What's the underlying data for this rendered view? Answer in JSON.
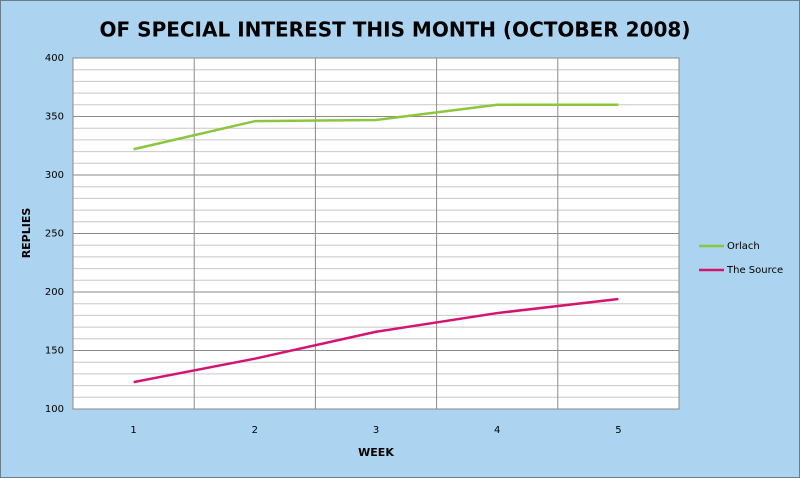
{
  "chart_data": {
    "type": "line",
    "title": "OF SPECIAL INTEREST THIS MONTH (OCTOBER 2008)",
    "x_label": "WEEK",
    "y_label": "REPLIES",
    "categories": [
      "1",
      "2",
      "3",
      "4",
      "5"
    ],
    "series": [
      {
        "name": "Orlach",
        "color": "#8cc63f",
        "values": [
          322,
          346,
          347,
          360,
          360
        ]
      },
      {
        "name": "The Source",
        "color": "#d4156f",
        "values": [
          123,
          143,
          166,
          182,
          194
        ]
      }
    ],
    "ylim": [
      100,
      400
    ],
    "yticks": [
      100,
      150,
      200,
      250,
      300,
      350,
      400
    ],
    "grid": true,
    "legend": "right"
  }
}
